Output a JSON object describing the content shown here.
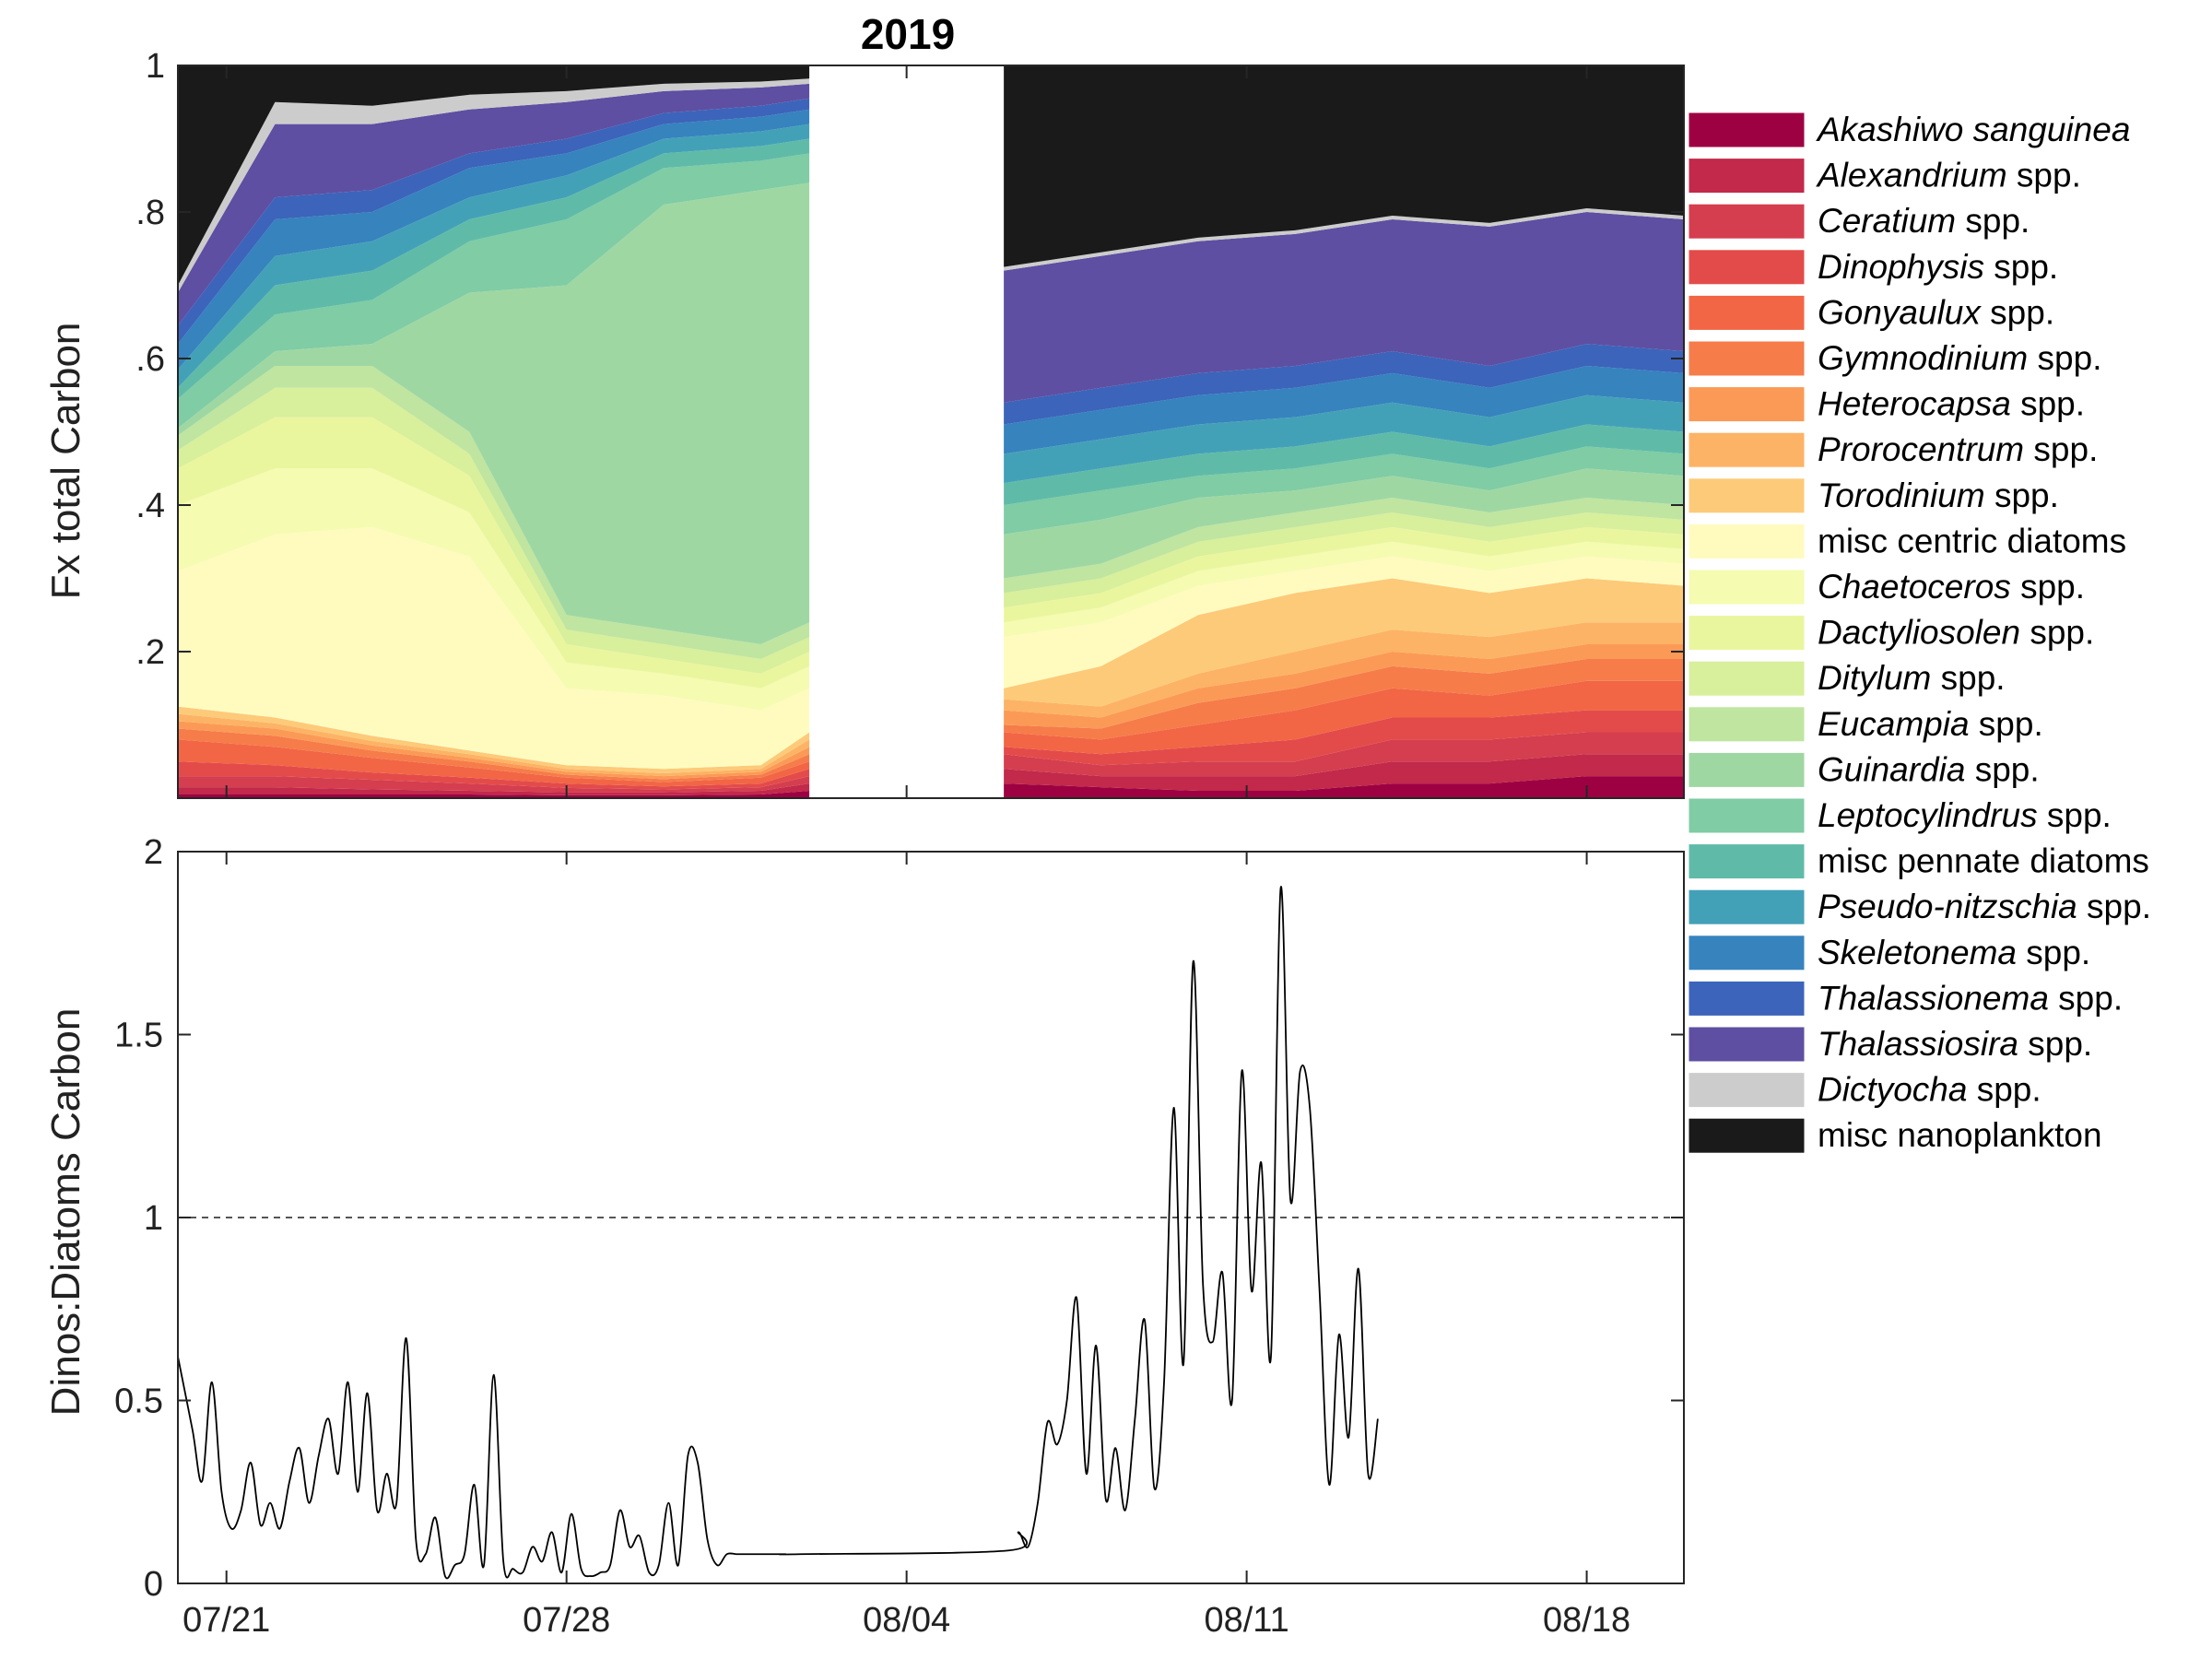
{
  "chart_data": [
    {
      "type": "area",
      "subtype": "stacked-fraction",
      "title": "2019",
      "ylabel": "Fx total Carbon",
      "ylim": [
        0,
        1
      ],
      "yticks": [
        0.2,
        0.4,
        0.6,
        0.8,
        1
      ],
      "ytick_labels": [
        ".2",
        ".4",
        ".6",
        ".8",
        "1"
      ],
      "xlim": [
        "2019-07-20",
        "2019-08-20"
      ],
      "x_day_range": [
        0,
        31.0
      ],
      "data_gap": [
        "2019-08-02",
        "2019-08-06"
      ],
      "x_tick_dates": [
        "2019-07-21",
        "2019-07-28",
        "2019-08-04",
        "2019-08-11",
        "2019-08-18"
      ],
      "legend_position": "right",
      "series": [
        {
          "name": "Akashiwo sanguinea",
          "italic": "Akashiwo sanguinea",
          "suffix": "",
          "color": "#9e0142"
        },
        {
          "name": "Alexandrium spp.",
          "italic": "Alexandrium",
          "suffix": " spp.",
          "color": "#c2294a"
        },
        {
          "name": "Ceratium spp.",
          "italic": "Ceratium",
          "suffix": " spp.",
          "color": "#d53e4f"
        },
        {
          "name": "Dinophysis spp.",
          "italic": "Dinophysis",
          "suffix": " spp.",
          "color": "#e34b4a"
        },
        {
          "name": "Gonyaulux spp.",
          "italic": "Gonyaulux",
          "suffix": " spp.",
          "color": "#f26645"
        },
        {
          "name": "Gymnodinium spp.",
          "italic": "Gymnodinium",
          "suffix": " spp.",
          "color": "#f67c4a"
        },
        {
          "name": "Heterocapsa spp.",
          "italic": "Heterocapsa",
          "suffix": " spp.",
          "color": "#fb9a56"
        },
        {
          "name": "Prorocentrum spp.",
          "italic": "Prorocentrum",
          "suffix": " spp.",
          "color": "#fdb365"
        },
        {
          "name": "Torodinium spp.",
          "italic": "Torodinium",
          "suffix": " spp.",
          "color": "#fdca79"
        },
        {
          "name": "misc centric diatoms",
          "italic": "",
          "suffix": "misc centric diatoms",
          "color": "#fffbbf"
        },
        {
          "name": "Chaetoceros spp.",
          "italic": "Chaetoceros",
          "suffix": " spp.",
          "color": "#f5fbb0"
        },
        {
          "name": "Dactyliosolen spp.",
          "italic": "Dactyliosolen",
          "suffix": " spp.",
          "color": "#eaf69e"
        },
        {
          "name": "Ditylum spp.",
          "italic": "Ditylum",
          "suffix": " spp.",
          "color": "#d8ef9b"
        },
        {
          "name": "Eucampia spp.",
          "italic": "Eucampia",
          "suffix": " spp.",
          "color": "#bfe5a0"
        },
        {
          "name": "Guinardia spp.",
          "italic": "Guinardia",
          "suffix": " spp.",
          "color": "#9fd7a3"
        },
        {
          "name": "Leptocylindrus spp.",
          "italic": "Leptocylindrus",
          "suffix": " spp.",
          "color": "#7fcca5"
        },
        {
          "name": "misc pennate diatoms",
          "italic": "",
          "suffix": "misc pennate diatoms",
          "color": "#5fbba8"
        },
        {
          "name": "Pseudo-nitzschia spp.",
          "italic": "Pseudo-nitzschia",
          "suffix": " spp.",
          "color": "#43a1b7"
        },
        {
          "name": "Skeletonema spp.",
          "italic": "Skeletonema",
          "suffix": " spp.",
          "color": "#3683be"
        },
        {
          "name": "Thalassionema spp.",
          "italic": "Thalassionema",
          "suffix": " spp.",
          "color": "#3c64ba"
        },
        {
          "name": "Thalassiosira spp.",
          "italic": "Thalassiosira",
          "suffix": " spp.",
          "color": "#5e4fa2"
        },
        {
          "name": "Dictyocha spp.",
          "italic": "Dictyocha",
          "suffix": " spp.",
          "color": "#cccccc"
        },
        {
          "name": "misc nanoplankton",
          "italic": "",
          "suffix": "misc nanoplankton",
          "color": "#1a1a1a"
        }
      ],
      "x": [
        "07/20",
        "07/22",
        "07/24",
        "07/26",
        "07/28",
        "07/30",
        "08/01",
        "08/02",
        "08/06",
        "08/08",
        "08/10",
        "08/12",
        "08/14",
        "08/16",
        "08/18",
        "08/20"
      ],
      "stack_boundaries_note": "cumulative upper bound of each series (same order as series), per x",
      "cumulative": [
        [
          0.005,
          0.015,
          0.03,
          0.05,
          0.08,
          0.095,
          0.105,
          0.115,
          0.125,
          0.31,
          0.4,
          0.45,
          0.475,
          0.495,
          0.505,
          0.545,
          0.56,
          0.585,
          0.62,
          0.645,
          0.69,
          0.7,
          1.0
        ],
        [
          0.005,
          0.015,
          0.03,
          0.045,
          0.07,
          0.085,
          0.095,
          0.102,
          0.11,
          0.36,
          0.45,
          0.52,
          0.56,
          0.59,
          0.61,
          0.66,
          0.7,
          0.74,
          0.79,
          0.82,
          0.92,
          0.95,
          1.0
        ],
        [
          0.005,
          0.012,
          0.025,
          0.035,
          0.055,
          0.065,
          0.072,
          0.078,
          0.085,
          0.37,
          0.45,
          0.52,
          0.56,
          0.59,
          0.62,
          0.68,
          0.72,
          0.76,
          0.8,
          0.83,
          0.92,
          0.945,
          1.0
        ],
        [
          0.005,
          0.01,
          0.02,
          0.028,
          0.042,
          0.05,
          0.055,
          0.06,
          0.065,
          0.33,
          0.39,
          0.44,
          0.47,
          0.5,
          0.69,
          0.76,
          0.79,
          0.82,
          0.86,
          0.88,
          0.94,
          0.96,
          1.0
        ],
        [
          0.004,
          0.008,
          0.014,
          0.02,
          0.028,
          0.032,
          0.036,
          0.04,
          0.045,
          0.15,
          0.185,
          0.21,
          0.23,
          0.25,
          0.7,
          0.79,
          0.82,
          0.85,
          0.88,
          0.9,
          0.95,
          0.965,
          1.0
        ],
        [
          0.004,
          0.008,
          0.012,
          0.016,
          0.022,
          0.026,
          0.03,
          0.034,
          0.04,
          0.14,
          0.17,
          0.19,
          0.21,
          0.23,
          0.81,
          0.86,
          0.88,
          0.9,
          0.92,
          0.935,
          0.965,
          0.975,
          1.0
        ],
        [
          0.005,
          0.01,
          0.015,
          0.02,
          0.028,
          0.032,
          0.036,
          0.04,
          0.045,
          0.12,
          0.15,
          0.17,
          0.19,
          0.21,
          0.83,
          0.87,
          0.89,
          0.91,
          0.93,
          0.945,
          0.97,
          0.978,
          1.0
        ],
        [
          0.01,
          0.02,
          0.03,
          0.04,
          0.05,
          0.06,
          0.07,
          0.08,
          0.09,
          0.15,
          0.18,
          0.2,
          0.22,
          0.24,
          0.84,
          0.88,
          0.9,
          0.92,
          0.94,
          0.955,
          0.975,
          0.982,
          1.0
        ],
        [
          0.02,
          0.04,
          0.06,
          0.07,
          0.09,
          0.1,
          0.12,
          0.135,
          0.15,
          0.22,
          0.24,
          0.26,
          0.28,
          0.3,
          0.36,
          0.4,
          0.43,
          0.47,
          0.51,
          0.54,
          0.72,
          0.725,
          1.0
        ],
        [
          0.015,
          0.03,
          0.045,
          0.06,
          0.08,
          0.095,
          0.11,
          0.125,
          0.18,
          0.24,
          0.26,
          0.28,
          0.3,
          0.32,
          0.38,
          0.42,
          0.45,
          0.49,
          0.53,
          0.56,
          0.74,
          0.745,
          1.0
        ],
        [
          0.01,
          0.03,
          0.05,
          0.07,
          0.1,
          0.13,
          0.15,
          0.17,
          0.25,
          0.29,
          0.31,
          0.33,
          0.35,
          0.37,
          0.41,
          0.44,
          0.47,
          0.51,
          0.55,
          0.58,
          0.76,
          0.765,
          1.0
        ],
        [
          0.01,
          0.03,
          0.05,
          0.08,
          0.12,
          0.15,
          0.17,
          0.2,
          0.28,
          0.31,
          0.33,
          0.35,
          0.37,
          0.39,
          0.42,
          0.45,
          0.48,
          0.52,
          0.56,
          0.59,
          0.77,
          0.775,
          1.0
        ],
        [
          0.02,
          0.05,
          0.08,
          0.11,
          0.15,
          0.18,
          0.2,
          0.23,
          0.3,
          0.33,
          0.35,
          0.37,
          0.39,
          0.41,
          0.44,
          0.47,
          0.5,
          0.54,
          0.58,
          0.61,
          0.79,
          0.795,
          1.0
        ],
        [
          0.02,
          0.05,
          0.08,
          0.11,
          0.14,
          0.17,
          0.19,
          0.22,
          0.28,
          0.31,
          0.33,
          0.35,
          0.37,
          0.39,
          0.42,
          0.45,
          0.48,
          0.52,
          0.56,
          0.59,
          0.78,
          0.785,
          1.0
        ],
        [
          0.03,
          0.06,
          0.09,
          0.12,
          0.16,
          0.19,
          0.21,
          0.24,
          0.3,
          0.33,
          0.35,
          0.37,
          0.39,
          0.41,
          0.45,
          0.48,
          0.51,
          0.55,
          0.59,
          0.62,
          0.8,
          0.805,
          1.0
        ],
        [
          0.03,
          0.06,
          0.09,
          0.12,
          0.16,
          0.19,
          0.21,
          0.24,
          0.29,
          0.32,
          0.34,
          0.36,
          0.38,
          0.4,
          0.44,
          0.47,
          0.5,
          0.54,
          0.58,
          0.61,
          0.79,
          0.795,
          1.0
        ]
      ]
    },
    {
      "type": "line",
      "ylabel": "Dinos:Diatoms Carbon",
      "ylim": [
        0,
        2
      ],
      "yticks": [
        0,
        0.5,
        1,
        1.5,
        2
      ],
      "ytick_labels": [
        "0",
        "0.5",
        "1",
        "1.5",
        "2"
      ],
      "xlim": [
        "2019-07-20",
        "2019-08-20"
      ],
      "x_day_range": [
        0,
        31.0
      ],
      "x_tick_dates": [
        "2019-07-21",
        "2019-07-28",
        "2019-08-04",
        "2019-08-11",
        "2019-08-18"
      ],
      "x_tick_labels": [
        "07/21",
        "07/28",
        "08/04",
        "08/11",
        "08/18"
      ],
      "reference_line": {
        "y": 1,
        "style": "dashed"
      },
      "series": [
        {
          "color": "#000000",
          "x_days": [
            0.0,
            0.3,
            0.5,
            0.7,
            0.9,
            1.1,
            1.3,
            1.5,
            1.7,
            1.9,
            2.1,
            2.3,
            2.5,
            2.7,
            2.9,
            3.1,
            3.3,
            3.5,
            3.7,
            3.9,
            4.1,
            4.3,
            4.5,
            4.7,
            4.9,
            5.1,
            5.3,
            5.5,
            5.7,
            5.9,
            6.1,
            6.3,
            6.5,
            6.7,
            6.9,
            7.1,
            7.3,
            7.5,
            7.7,
            7.9,
            8.1,
            8.3,
            8.5,
            8.7,
            8.9,
            9.1,
            9.3,
            9.5,
            9.7,
            9.9,
            10.1,
            10.3,
            10.5,
            10.7,
            10.9,
            11.1,
            11.3,
            11.5,
            11.7,
            11.9,
            12.1,
            12.3,
            12.5,
            12.8,
            17.1,
            17.3,
            17.5,
            17.7,
            17.9,
            18.1,
            18.3,
            18.5,
            18.7,
            18.9,
            19.1,
            19.3,
            19.5,
            19.7,
            19.9,
            20.1,
            20.3,
            20.5,
            20.7,
            20.9,
            21.1,
            21.3,
            21.5,
            21.7,
            21.9,
            22.1,
            22.3,
            22.5,
            22.7,
            22.9,
            23.1,
            23.3,
            23.5,
            23.7,
            23.9,
            24.1,
            24.3,
            24.5,
            24.7
          ],
          "values": [
            0.62,
            0.42,
            0.28,
            0.55,
            0.25,
            0.15,
            0.2,
            0.33,
            0.16,
            0.22,
            0.15,
            0.28,
            0.37,
            0.22,
            0.35,
            0.45,
            0.3,
            0.55,
            0.25,
            0.52,
            0.2,
            0.3,
            0.22,
            0.67,
            0.12,
            0.08,
            0.18,
            0.02,
            0.05,
            0.08,
            0.27,
            0.05,
            0.57,
            0.06,
            0.04,
            0.03,
            0.1,
            0.06,
            0.14,
            0.03,
            0.19,
            0.04,
            0.02,
            0.03,
            0.05,
            0.2,
            0.1,
            0.13,
            0.03,
            0.05,
            0.22,
            0.05,
            0.35,
            0.33,
            0.12,
            0.05,
            0.08,
            0.08,
            0.08,
            0.08,
            0.08,
            0.08,
            0.08,
            0.08,
            0.09,
            0.14,
            0.1,
            0.22,
            0.44,
            0.38,
            0.5,
            0.78,
            0.3,
            0.65,
            0.23,
            0.37,
            0.2,
            0.45,
            0.72,
            0.26,
            0.55,
            1.3,
            0.6,
            1.7,
            0.82,
            0.66,
            0.85,
            0.5,
            1.4,
            0.8,
            1.15,
            0.62,
            1.9,
            1.05,
            1.4,
            1.3,
            0.8,
            0.27,
            0.68,
            0.4,
            0.86,
            0.3,
            0.45
          ]
        }
      ]
    }
  ]
}
